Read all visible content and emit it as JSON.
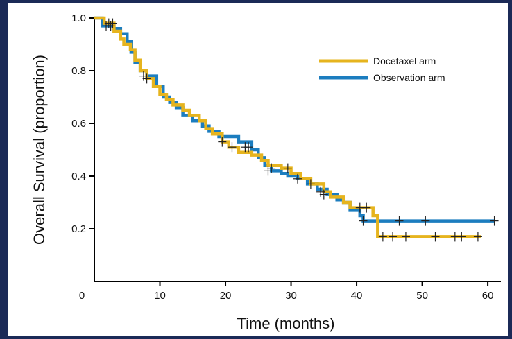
{
  "chart_data": {
    "type": "line",
    "subtype": "kaplan-meier-step",
    "title": "",
    "xlabel": "Time (months)",
    "ylabel": "Overall Survival  (proportion)",
    "xlim": [
      0,
      62
    ],
    "ylim": [
      0,
      1.0
    ],
    "x_ticks": [
      "0",
      "10",
      "20",
      "30",
      "40",
      "50",
      "60"
    ],
    "y_ticks": [
      "0.2",
      "0.4",
      "0.6",
      "0.8",
      "1.0"
    ],
    "grid": false,
    "legend_position": "top-right",
    "series": [
      {
        "name": "Docetaxel arm",
        "color": "#e6b41e",
        "points": [
          [
            0,
            1.0
          ],
          [
            1.5,
            0.98
          ],
          [
            3.0,
            0.95
          ],
          [
            4.0,
            0.92
          ],
          [
            4.5,
            0.9
          ],
          [
            5.5,
            0.88
          ],
          [
            6.2,
            0.84
          ],
          [
            7.0,
            0.8
          ],
          [
            8.0,
            0.77
          ],
          [
            9.0,
            0.74
          ],
          [
            10.0,
            0.71
          ],
          [
            11.0,
            0.69
          ],
          [
            12.0,
            0.67
          ],
          [
            13.5,
            0.65
          ],
          [
            14.5,
            0.63
          ],
          [
            16.0,
            0.61
          ],
          [
            17.0,
            0.58
          ],
          [
            18.0,
            0.56
          ],
          [
            19.5,
            0.53
          ],
          [
            20.5,
            0.51
          ],
          [
            22.0,
            0.49
          ],
          [
            24.0,
            0.48
          ],
          [
            25.5,
            0.46
          ],
          [
            26.5,
            0.44
          ],
          [
            28.5,
            0.43
          ],
          [
            30.0,
            0.41
          ],
          [
            31.5,
            0.39
          ],
          [
            33.0,
            0.37
          ],
          [
            35.0,
            0.34
          ],
          [
            36.0,
            0.32
          ],
          [
            38.0,
            0.3
          ],
          [
            39.0,
            0.28
          ],
          [
            42.5,
            0.25
          ],
          [
            43.2,
            0.17
          ],
          [
            59.0,
            0.17
          ]
        ],
        "censored": [
          [
            2.2,
            0.98
          ],
          [
            2.8,
            0.98
          ],
          [
            8.0,
            0.77
          ],
          [
            19.5,
            0.53
          ],
          [
            21.0,
            0.51
          ],
          [
            23.5,
            0.51
          ],
          [
            27.0,
            0.43
          ],
          [
            29.5,
            0.43
          ],
          [
            34.5,
            0.34
          ],
          [
            40.5,
            0.28
          ],
          [
            41.5,
            0.28
          ],
          [
            44.0,
            0.17
          ],
          [
            45.5,
            0.17
          ],
          [
            47.5,
            0.17
          ],
          [
            52.0,
            0.17
          ],
          [
            55.0,
            0.17
          ],
          [
            56.0,
            0.17
          ],
          [
            58.5,
            0.17
          ]
        ]
      },
      {
        "name": "Observation arm",
        "color": "#1c7dbf",
        "points": [
          [
            0,
            1.0
          ],
          [
            1.2,
            0.97
          ],
          [
            3.0,
            0.96
          ],
          [
            4.0,
            0.94
          ],
          [
            5.0,
            0.91
          ],
          [
            5.6,
            0.87
          ],
          [
            6.2,
            0.83
          ],
          [
            7.0,
            0.8
          ],
          [
            8.0,
            0.78
          ],
          [
            9.5,
            0.74
          ],
          [
            10.5,
            0.7
          ],
          [
            11.5,
            0.68
          ],
          [
            12.5,
            0.66
          ],
          [
            13.5,
            0.63
          ],
          [
            15.0,
            0.61
          ],
          [
            16.5,
            0.59
          ],
          [
            17.5,
            0.57
          ],
          [
            19.0,
            0.55
          ],
          [
            21.0,
            0.55
          ],
          [
            22.0,
            0.53
          ],
          [
            24.0,
            0.5
          ],
          [
            25.0,
            0.47
          ],
          [
            26.0,
            0.44
          ],
          [
            27.0,
            0.42
          ],
          [
            28.5,
            0.41
          ],
          [
            29.5,
            0.4
          ],
          [
            31.0,
            0.39
          ],
          [
            32.5,
            0.37
          ],
          [
            34.0,
            0.35
          ],
          [
            35.5,
            0.33
          ],
          [
            37.0,
            0.31
          ],
          [
            38.0,
            0.3
          ],
          [
            39.0,
            0.27
          ],
          [
            40.5,
            0.25
          ],
          [
            41.0,
            0.23
          ],
          [
            61.0,
            0.23
          ]
        ],
        "censored": [
          [
            1.8,
            0.97
          ],
          [
            2.5,
            0.97
          ],
          [
            7.5,
            0.78
          ],
          [
            23.0,
            0.51
          ],
          [
            26.5,
            0.42
          ],
          [
            31.0,
            0.39
          ],
          [
            33.0,
            0.37
          ],
          [
            35.0,
            0.33
          ],
          [
            41.0,
            0.23
          ],
          [
            46.5,
            0.23
          ],
          [
            50.5,
            0.23
          ],
          [
            61.0,
            0.23
          ]
        ]
      }
    ]
  }
}
